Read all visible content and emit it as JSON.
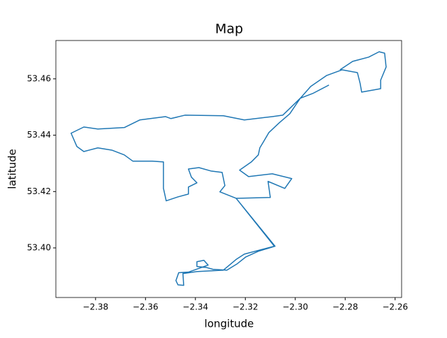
{
  "chart_data": {
    "type": "line",
    "title": "Map",
    "x_label": "longitude",
    "y_label": "latitude",
    "color": "#1f77b4",
    "x": [
      -2.2865,
      -2.293,
      -2.298,
      -2.3022,
      -2.3064,
      -2.3106,
      -2.3125,
      -2.3142,
      -2.3148,
      -2.3176,
      -2.3223,
      -2.3187,
      -2.3092,
      -2.3014,
      -2.3042,
      -2.3109,
      -2.31,
      -2.3237,
      -2.3081,
      -2.3148,
      -2.3198,
      -2.3232,
      -2.3274,
      -2.333,
      -2.3358,
      -2.3394,
      -2.3394,
      -2.3366,
      -2.3349,
      -2.3428,
      -2.3467,
      -2.3478,
      -2.347,
      -2.3447,
      -2.345,
      -2.3394,
      -2.3288,
      -2.3237,
      -2.3204,
      -2.3084,
      -2.3237,
      -2.3302,
      -2.3282,
      -2.3293,
      -2.3338,
      -2.3386,
      -2.3428,
      -2.3416,
      -2.3394,
      -2.3428,
      -2.3428,
      -2.347,
      -2.3517,
      -2.3528,
      -2.3528,
      -2.3573,
      -2.3651,
      -2.3685,
      -2.3735,
      -2.3791,
      -2.3847,
      -2.3875,
      -2.3898,
      -2.3847,
      -2.3791,
      -2.3685,
      -2.3623,
      -2.352,
      -2.3498,
      -2.3442,
      -2.3288,
      -2.3204,
      -2.3092,
      -2.305,
      -2.298,
      -2.2938,
      -2.2874,
      -2.2812,
      -2.2751,
      -2.274,
      -2.2734,
      -2.2658,
      -2.2658,
      -2.2636,
      -2.2642,
      -2.2664,
      -2.2706,
      -2.277,
      -2.2821
    ],
    "values": [
      53.4578,
      53.4548,
      53.4531,
      53.4476,
      53.4444,
      53.4409,
      53.438,
      53.4355,
      53.433,
      53.4305,
      53.4276,
      53.4253,
      53.4263,
      53.4246,
      53.4211,
      53.4236,
      53.4179,
      53.4176,
      53.4006,
      53.3988,
      53.3968,
      53.3944,
      53.3921,
      53.3924,
      53.3931,
      53.3934,
      53.3951,
      53.3956,
      53.3939,
      53.3914,
      53.3912,
      53.3884,
      53.3869,
      53.3867,
      53.3909,
      53.3916,
      53.3921,
      53.3959,
      53.3978,
      53.4006,
      53.4176,
      53.4199,
      53.4221,
      53.4268,
      53.4273,
      53.4285,
      53.428,
      53.4251,
      53.4231,
      53.4216,
      53.4191,
      53.4181,
      53.4167,
      53.4211,
      53.4305,
      53.4308,
      53.4308,
      53.433,
      53.4347,
      53.4355,
      53.4342,
      53.436,
      53.4407,
      53.4429,
      53.4422,
      53.4427,
      53.4454,
      53.4466,
      53.4459,
      53.4471,
      53.4469,
      53.4454,
      53.4466,
      53.4471,
      53.4531,
      53.4573,
      53.4612,
      53.4632,
      53.4622,
      53.4583,
      53.4553,
      53.4565,
      53.4595,
      53.4642,
      53.4691,
      53.4696,
      53.4677,
      53.4662,
      53.4632
    ],
    "xlim": [
      -2.3959,
      -2.2574
    ],
    "ylim": [
      53.3824,
      53.4736
    ],
    "xticks": [
      {
        "value": -2.38,
        "label": "−2.38"
      },
      {
        "value": -2.36,
        "label": "−2.36"
      },
      {
        "value": -2.34,
        "label": "−2.34"
      },
      {
        "value": -2.32,
        "label": "−2.32"
      },
      {
        "value": -2.3,
        "label": "−2.30"
      },
      {
        "value": -2.28,
        "label": "−2.28"
      },
      {
        "value": -2.26,
        "label": "−2.26"
      }
    ],
    "yticks": [
      {
        "value": 53.4,
        "label": "53.40"
      },
      53.42,
      53.44,
      53.46
    ]
  }
}
